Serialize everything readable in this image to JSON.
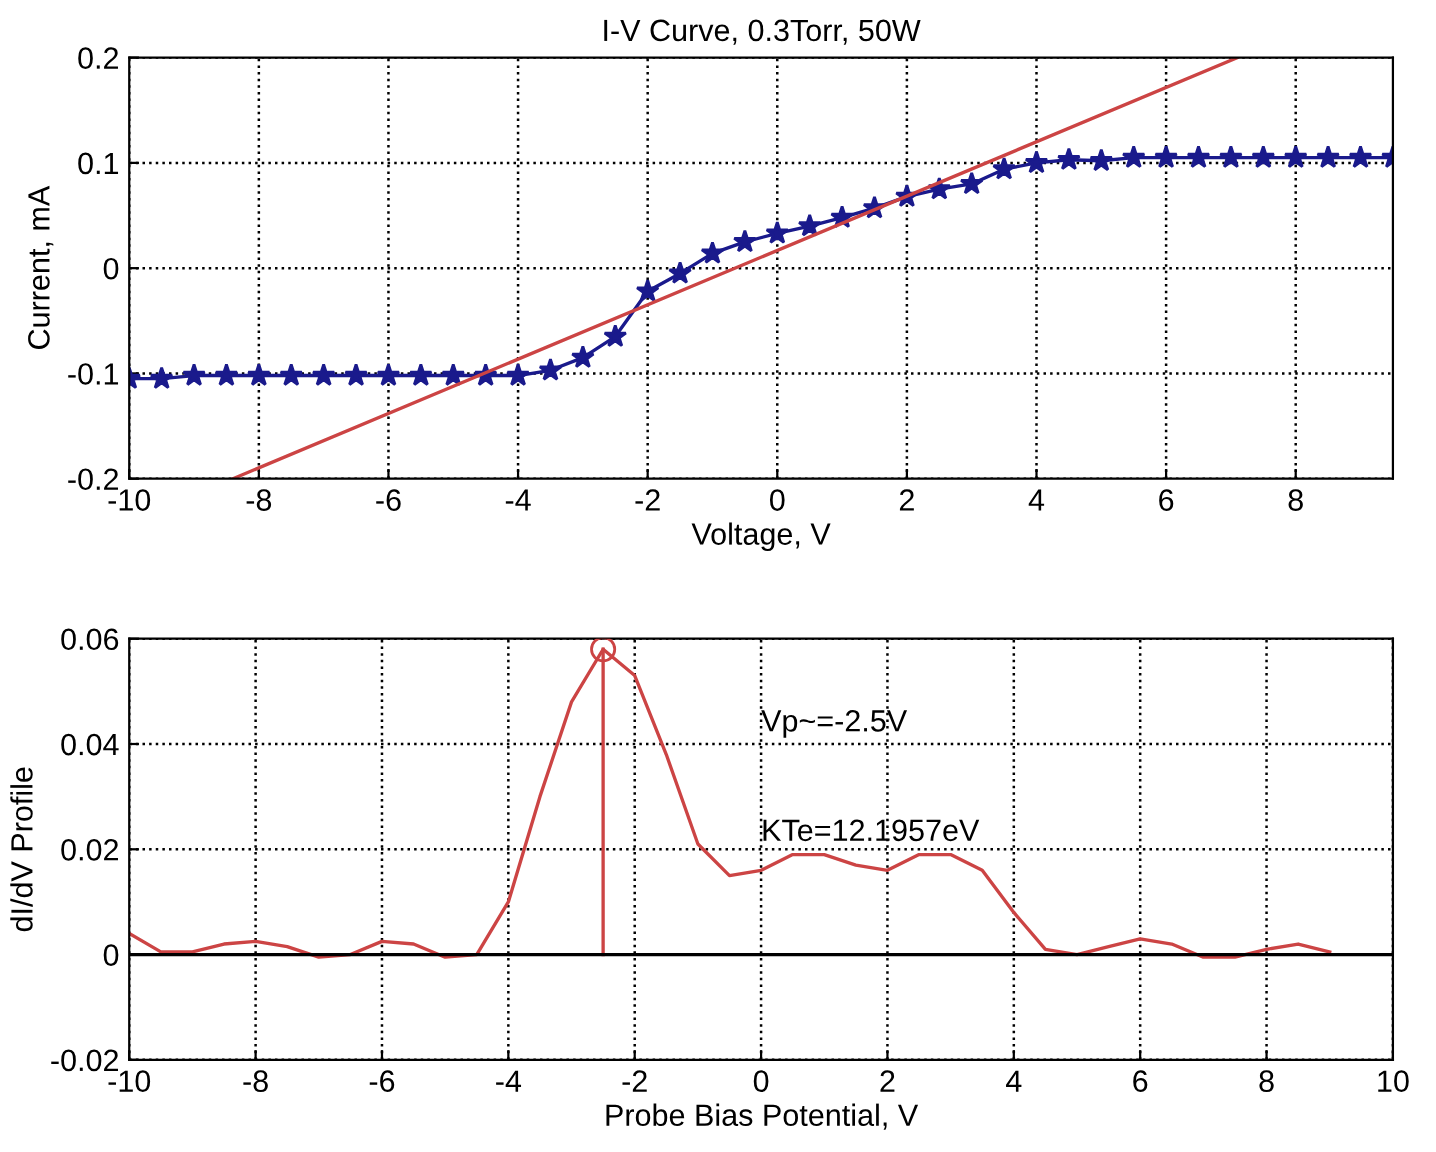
{
  "chart_data": [
    {
      "type": "line",
      "title": "I-V Curve, 0.3Torr, 50W",
      "xlabel": "Voltage, V",
      "ylabel": "Current, mA",
      "xlim": [
        -10,
        9.5
      ],
      "ylim": [
        -0.2,
        0.2
      ],
      "xticks": [
        -10,
        -8,
        -6,
        -4,
        -2,
        0,
        2,
        4,
        6,
        8
      ],
      "yticks": [
        -0.2,
        -0.1,
        0,
        0.1,
        0.2
      ],
      "grid": true,
      "series": [
        {
          "color": "#1a1a8c",
          "marker": "star",
          "x": [
            -10,
            -9.5,
            -9,
            -8.5,
            -8,
            -7.5,
            -7,
            -6.5,
            -6,
            -5.5,
            -5,
            -4.5,
            -4,
            -3.5,
            -3,
            -2.5,
            -2,
            -1.5,
            -1,
            -0.5,
            0,
            0.5,
            1,
            1.5,
            2,
            2.5,
            3,
            3.5,
            4,
            4.5,
            5,
            5.5,
            6,
            6.5,
            7,
            7.5,
            8,
            8.5,
            9,
            9.5
          ],
          "values": [
            -0.105,
            -0.105,
            -0.102,
            -0.102,
            -0.102,
            -0.102,
            -0.102,
            -0.102,
            -0.102,
            -0.102,
            -0.102,
            -0.102,
            -0.102,
            -0.097,
            -0.085,
            -0.065,
            -0.022,
            -0.005,
            0.014,
            0.025,
            0.033,
            0.04,
            0.048,
            0.057,
            0.068,
            0.075,
            0.08,
            0.094,
            0.1,
            0.103,
            0.102,
            0.105,
            0.105,
            0.105,
            0.105,
            0.105,
            0.105,
            0.105,
            0.105,
            0.105
          ]
        },
        {
          "color": "#cc4444",
          "marker": "none",
          "x": [
            -8.4,
            7.1
          ],
          "values": [
            -0.2,
            0.2
          ]
        }
      ]
    },
    {
      "type": "line",
      "xlabel": "Probe Bias Potential, V",
      "ylabel": "dI/dV Profile",
      "xlim": [
        -10,
        10
      ],
      "ylim": [
        -0.02,
        0.06
      ],
      "xticks": [
        -10,
        -8,
        -6,
        -4,
        -2,
        0,
        2,
        4,
        6,
        8,
        10
      ],
      "yticks": [
        -0.02,
        0,
        0.02,
        0.04,
        0.06
      ],
      "grid": true,
      "annotations": [
        "Vp~=-2.5V",
        "KTe=12.1957eV"
      ],
      "ref_lines": [
        {
          "axis": "y",
          "value": 0,
          "color": "#000000"
        }
      ],
      "series": [
        {
          "color": "#cc4444",
          "marker": "none",
          "x": [
            -10,
            -9.5,
            -9,
            -8.5,
            -8,
            -7.5,
            -7,
            -6.5,
            -6,
            -5.5,
            -5,
            -4.5,
            -4,
            -3.5,
            -3,
            -2.5,
            -2,
            -1.5,
            -1,
            -0.5,
            0,
            0.5,
            1,
            1.5,
            2,
            2.5,
            3,
            3.5,
            4,
            4.5,
            5,
            5.5,
            6,
            6.5,
            7,
            7.5,
            8,
            8.5,
            9
          ],
          "values": [
            0.004,
            0.0005,
            0.0005,
            0.002,
            0.0025,
            0.0015,
            -0.0005,
            0,
            0.0025,
            0.002,
            -0.0005,
            0,
            0.01,
            0.03,
            0.048,
            0.058,
            0.053,
            0.038,
            0.021,
            0.015,
            0.016,
            0.019,
            0.019,
            0.017,
            0.016,
            0.019,
            0.019,
            0.016,
            0.008,
            0.001,
            0,
            0.0015,
            0.003,
            0.002,
            -0.0005,
            -0.0005,
            0.001,
            0.002,
            0.0005
          ]
        },
        {
          "color": "#cc4444",
          "marker": "none",
          "x": [
            -2.5,
            -2.5
          ],
          "values": [
            0,
            0.058
          ]
        },
        {
          "type": "scatter",
          "color": "#cc4444",
          "marker": "circle",
          "x": [
            -2.5
          ],
          "values": [
            0.058
          ]
        }
      ]
    }
  ]
}
